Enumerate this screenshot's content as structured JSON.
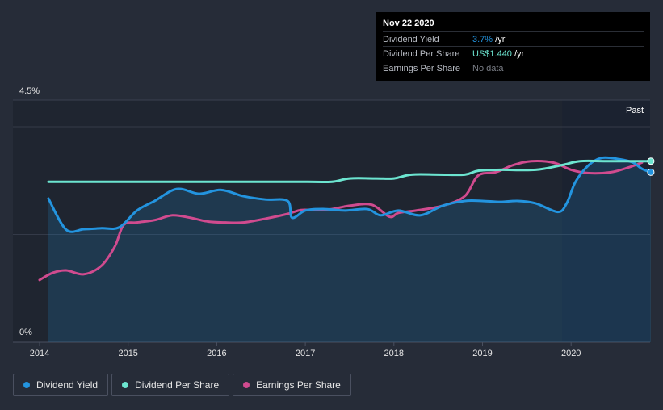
{
  "chart_data": {
    "type": "line",
    "x_range": [
      2014.0,
      2020.9
    ],
    "ylim": [
      0,
      4.5
    ],
    "y_tick_labels": [
      "4.5%",
      "0%"
    ],
    "x_ticks": [
      2014,
      2015,
      2016,
      2017,
      2018,
      2019,
      2020
    ],
    "x_tick_labels": [
      "2014",
      "2015",
      "2016",
      "2017",
      "2018",
      "2019",
      "2020"
    ],
    "past_label": "Past",
    "past_start": 2019.9,
    "grid": true,
    "series": [
      {
        "name": "Dividend Yield",
        "color": "#2394df",
        "filled": true,
        "points": [
          [
            2014.1,
            3.0
          ],
          [
            2014.3,
            2.35
          ],
          [
            2014.5,
            2.36
          ],
          [
            2014.7,
            2.38
          ],
          [
            2014.9,
            2.4
          ],
          [
            2015.1,
            2.75
          ],
          [
            2015.3,
            2.95
          ],
          [
            2015.55,
            3.2
          ],
          [
            2015.8,
            3.1
          ],
          [
            2016.05,
            3.18
          ],
          [
            2016.3,
            3.05
          ],
          [
            2016.55,
            2.98
          ],
          [
            2016.8,
            2.95
          ],
          [
            2016.85,
            2.6
          ],
          [
            2017.0,
            2.75
          ],
          [
            2017.2,
            2.78
          ],
          [
            2017.45,
            2.75
          ],
          [
            2017.7,
            2.78
          ],
          [
            2017.85,
            2.65
          ],
          [
            2018.05,
            2.75
          ],
          [
            2018.3,
            2.65
          ],
          [
            2018.55,
            2.85
          ],
          [
            2018.8,
            2.95
          ],
          [
            2019.0,
            2.95
          ],
          [
            2019.2,
            2.93
          ],
          [
            2019.4,
            2.95
          ],
          [
            2019.6,
            2.9
          ],
          [
            2019.85,
            2.72
          ],
          [
            2019.95,
            2.9
          ],
          [
            2020.05,
            3.35
          ],
          [
            2020.2,
            3.7
          ],
          [
            2020.35,
            3.85
          ],
          [
            2020.55,
            3.82
          ],
          [
            2020.7,
            3.75
          ],
          [
            2020.8,
            3.62
          ],
          [
            2020.9,
            3.55
          ]
        ],
        "end_marker": true
      },
      {
        "name": "Dividend Per Share",
        "color": "#6ce5d0",
        "filled": false,
        "points": [
          [
            2014.1,
            3.35
          ],
          [
            2015.0,
            3.35
          ],
          [
            2016.0,
            3.35
          ],
          [
            2017.0,
            3.35
          ],
          [
            2017.3,
            3.35
          ],
          [
            2017.5,
            3.42
          ],
          [
            2017.8,
            3.42
          ],
          [
            2018.0,
            3.42
          ],
          [
            2018.2,
            3.5
          ],
          [
            2018.5,
            3.5
          ],
          [
            2018.8,
            3.5
          ],
          [
            2018.95,
            3.58
          ],
          [
            2019.2,
            3.6
          ],
          [
            2019.6,
            3.6
          ],
          [
            2019.9,
            3.7
          ],
          [
            2020.1,
            3.78
          ],
          [
            2020.4,
            3.78
          ],
          [
            2020.9,
            3.78
          ]
        ],
        "end_marker": true
      },
      {
        "name": "Earnings Per Share",
        "color": "#d04b8f",
        "filled": false,
        "points": [
          [
            2014.0,
            1.3
          ],
          [
            2014.15,
            1.45
          ],
          [
            2014.3,
            1.5
          ],
          [
            2014.5,
            1.42
          ],
          [
            2014.7,
            1.6
          ],
          [
            2014.85,
            2.0
          ],
          [
            2014.95,
            2.45
          ],
          [
            2015.1,
            2.5
          ],
          [
            2015.3,
            2.55
          ],
          [
            2015.5,
            2.65
          ],
          [
            2015.7,
            2.6
          ],
          [
            2015.9,
            2.52
          ],
          [
            2016.1,
            2.5
          ],
          [
            2016.3,
            2.5
          ],
          [
            2016.55,
            2.58
          ],
          [
            2016.8,
            2.68
          ],
          [
            2016.95,
            2.76
          ],
          [
            2017.1,
            2.76
          ],
          [
            2017.3,
            2.78
          ],
          [
            2017.5,
            2.85
          ],
          [
            2017.75,
            2.87
          ],
          [
            2017.95,
            2.62
          ],
          [
            2018.05,
            2.7
          ],
          [
            2018.25,
            2.75
          ],
          [
            2018.55,
            2.85
          ],
          [
            2018.8,
            3.05
          ],
          [
            2018.95,
            3.48
          ],
          [
            2019.15,
            3.55
          ],
          [
            2019.35,
            3.7
          ],
          [
            2019.55,
            3.78
          ],
          [
            2019.8,
            3.75
          ],
          [
            2020.0,
            3.6
          ],
          [
            2020.2,
            3.53
          ],
          [
            2020.45,
            3.55
          ],
          [
            2020.65,
            3.65
          ],
          [
            2020.8,
            3.75
          ]
        ],
        "end_marker": false
      }
    ]
  },
  "tooltip": {
    "date": "Nov 22 2020",
    "rows": [
      {
        "name": "Dividend Yield",
        "value": "3.7%",
        "suffix": " /yr",
        "color": "#2394df"
      },
      {
        "name": "Dividend Per Share",
        "value": "US$1.440",
        "suffix": " /yr",
        "color": "#6ce5d0"
      },
      {
        "name": "Earnings Per Share",
        "value": "No data",
        "suffix": "",
        "color": "#7a7e86"
      }
    ]
  },
  "legend": [
    {
      "label": "Dividend Yield",
      "color": "#2394df"
    },
    {
      "label": "Dividend Per Share",
      "color": "#6ce5d0"
    },
    {
      "label": "Earnings Per Share",
      "color": "#d04b8f"
    }
  ]
}
